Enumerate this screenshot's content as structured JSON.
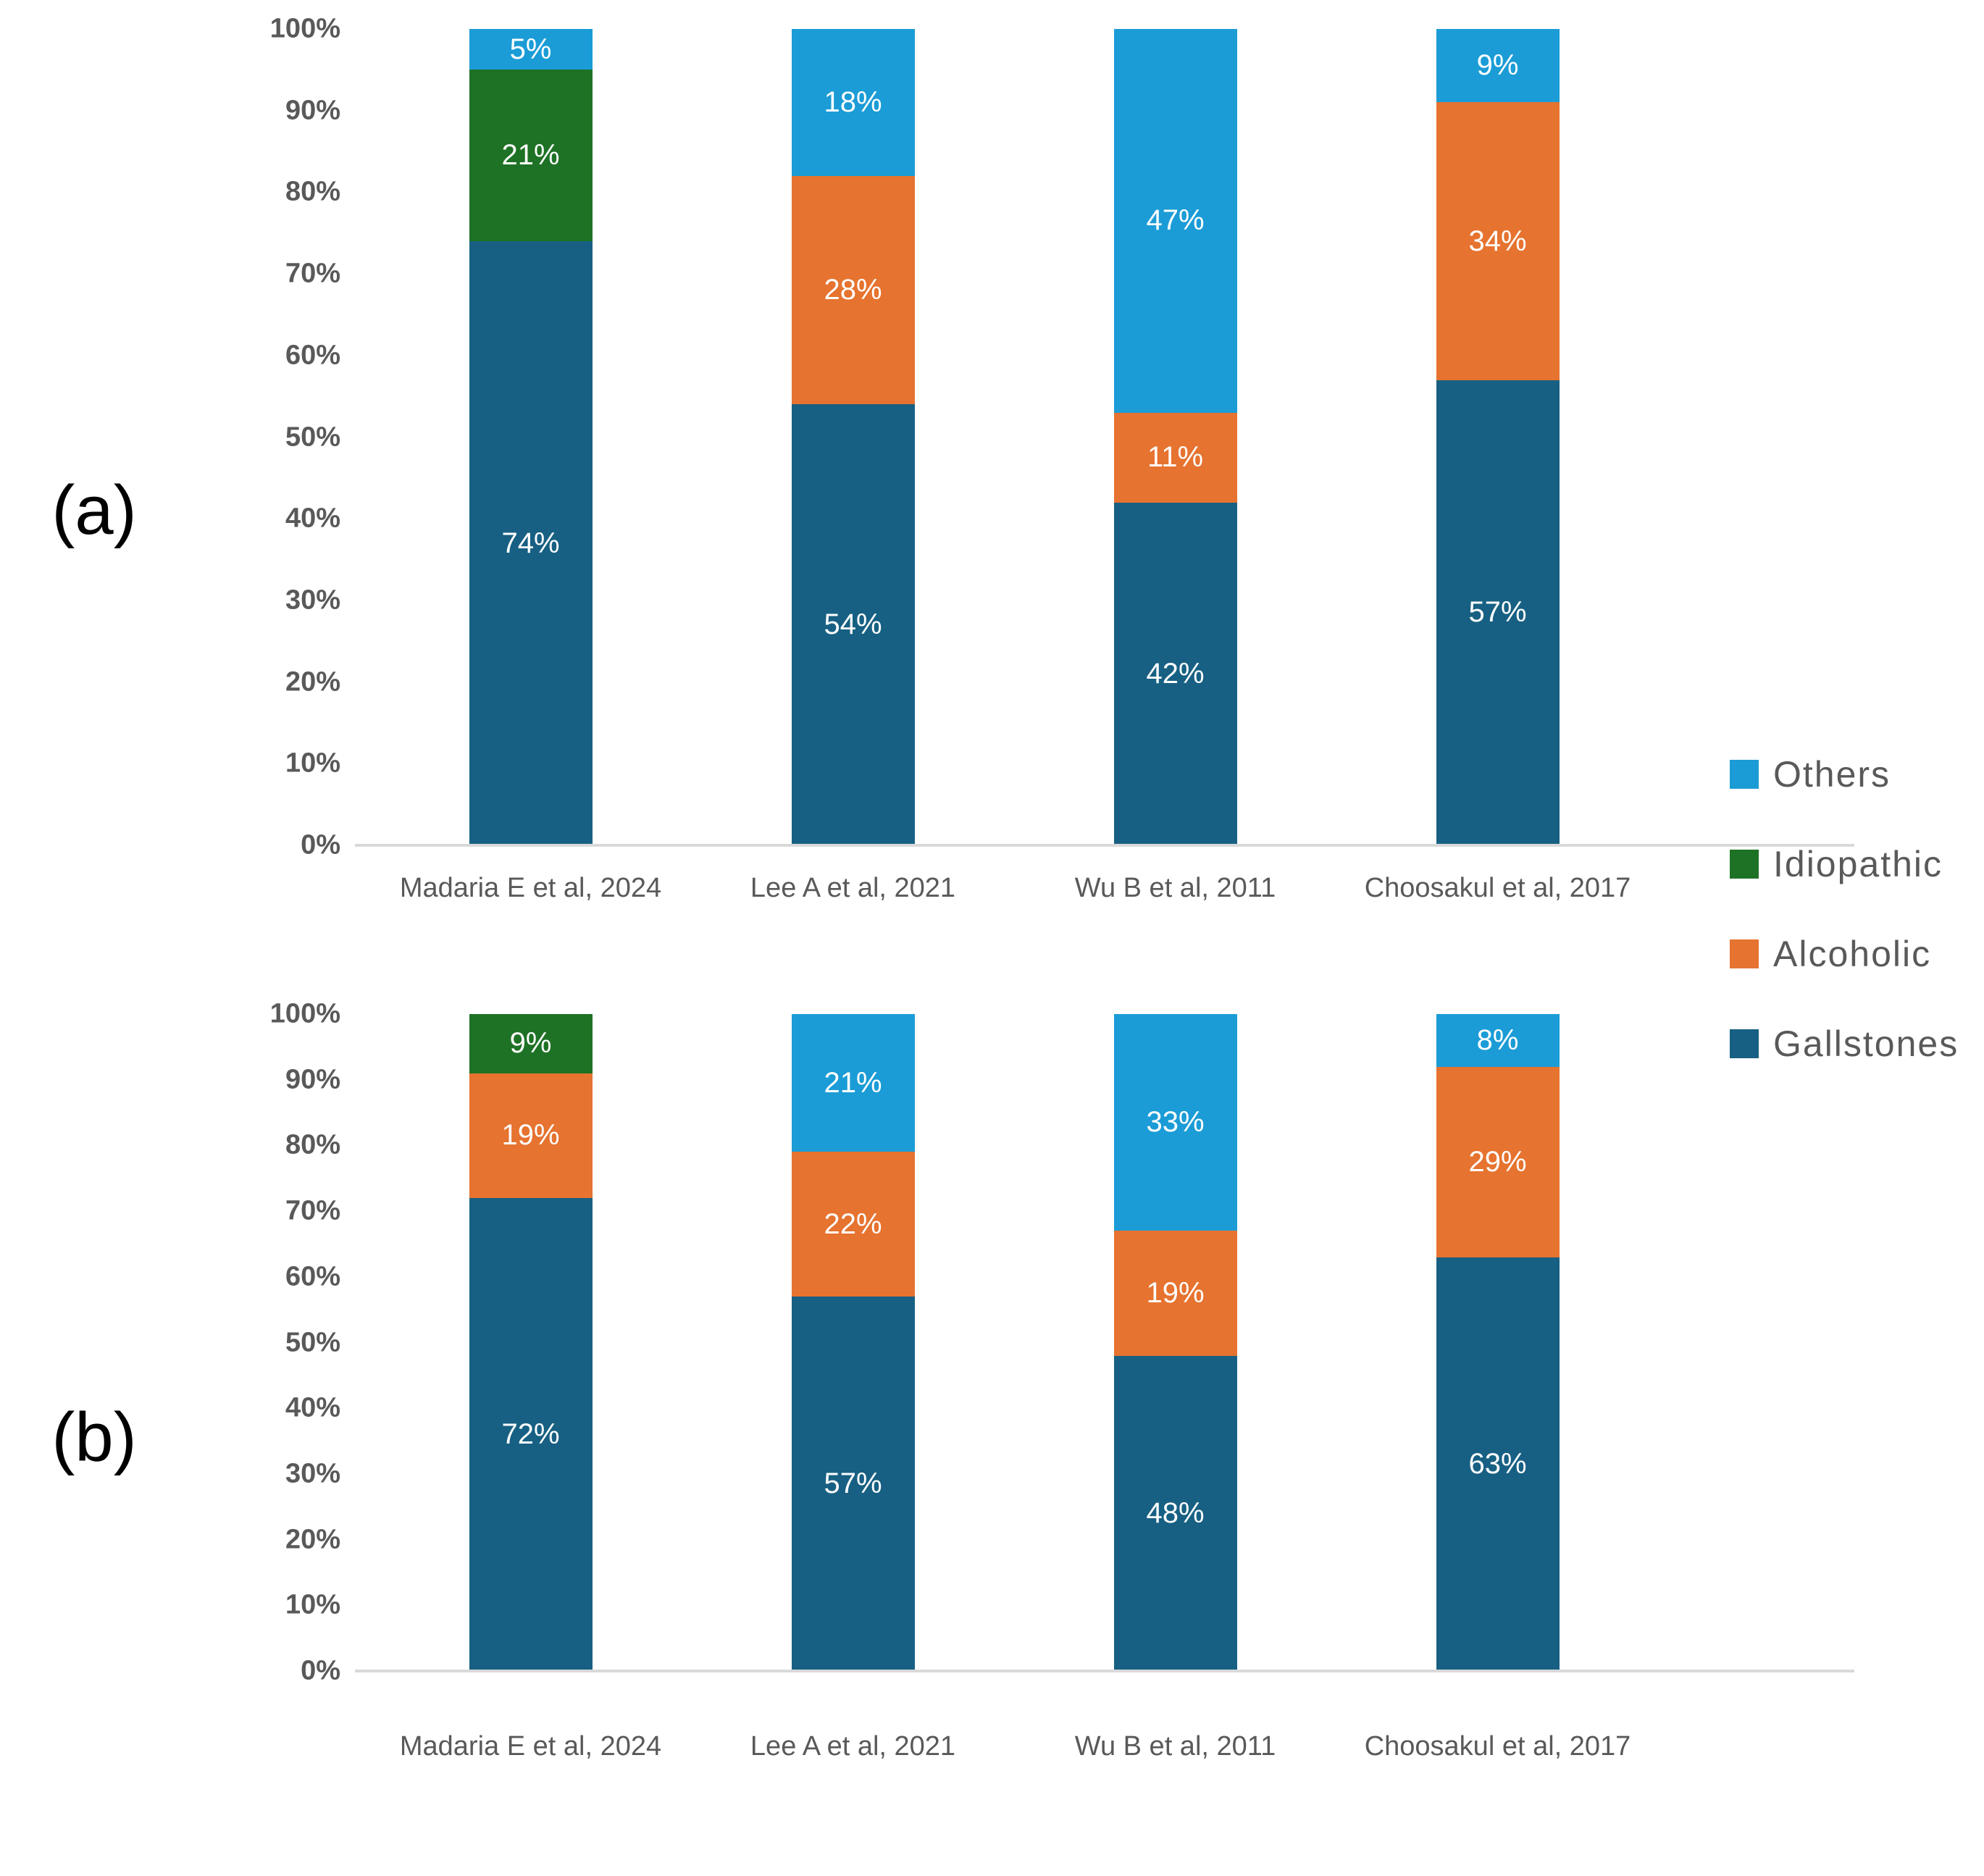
{
  "figure": {
    "panel_labels": [
      "(a)",
      "(b)"
    ]
  },
  "axis": {
    "y_tick_labels": [
      "100%",
      "90%",
      "80%",
      "70%",
      "60%",
      "50%",
      "40%",
      "30%",
      "20%",
      "10%",
      "0%"
    ],
    "y_min": 0,
    "y_max": 100,
    "y_step": 10
  },
  "legend": {
    "position": "right",
    "items": [
      {
        "label": "Others",
        "color": "#1B9CD6"
      },
      {
        "label": "Idiopathic",
        "color": "#1E7225"
      },
      {
        "label": "Alcoholic",
        "color": "#E6732F"
      },
      {
        "label": "Gallstones",
        "color": "#176083"
      }
    ]
  },
  "colors": {
    "axis_line": "#d9d9d9",
    "tick_text": "#595959",
    "data_label_text": "#ffffff"
  },
  "chart_data": [
    {
      "type": "bar",
      "subtype": "stacked-100",
      "panel_label": "(a)",
      "categories": [
        "Madaria E et al, 2024",
        "Lee A et al, 2021",
        "Wu B et al,  2011",
        "Choosakul et al, 2017"
      ],
      "series": [
        {
          "name": "Gallstones",
          "color": "#176083",
          "values": [
            74,
            54,
            42,
            57
          ]
        },
        {
          "name": "Alcoholic",
          "color": "#E6732F",
          "values": [
            0,
            28,
            11,
            34
          ]
        },
        {
          "name": "Idiopathic",
          "color": "#1E7225",
          "values": [
            21,
            0,
            0,
            0
          ]
        },
        {
          "name": "Others",
          "color": "#1B9CD6",
          "values": [
            5,
            18,
            47,
            9
          ]
        }
      ],
      "data_label_format": "{v}%",
      "ylim": [
        0,
        100
      ],
      "grid": false,
      "legend_position": "right"
    },
    {
      "type": "bar",
      "subtype": "stacked-100",
      "panel_label": "(b)",
      "categories": [
        "Madaria E et al, 2024",
        "Lee A et al, 2021",
        "Wu B et al,  2011",
        "Choosakul et al, 2017"
      ],
      "series": [
        {
          "name": "Gallstones",
          "color": "#176083",
          "values": [
            72,
            57,
            48,
            63
          ]
        },
        {
          "name": "Alcoholic",
          "color": "#E6732F",
          "values": [
            19,
            22,
            19,
            29
          ]
        },
        {
          "name": "Idiopathic",
          "color": "#1E7225",
          "values": [
            9,
            0,
            0,
            0
          ]
        },
        {
          "name": "Others",
          "color": "#1B9CD6",
          "values": [
            0,
            21,
            33,
            8
          ]
        }
      ],
      "data_label_format": "{v}%",
      "ylim": [
        0,
        100
      ],
      "grid": false,
      "legend_position": "right"
    }
  ]
}
